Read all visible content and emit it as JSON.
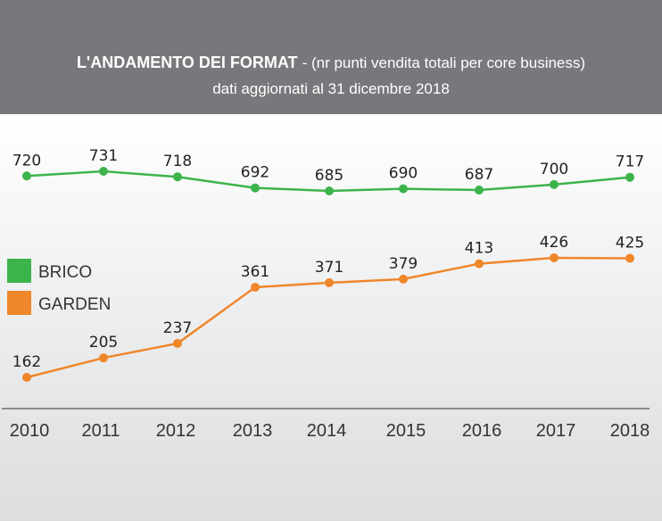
{
  "chart_data": {
    "type": "line",
    "title": "L'ANDAMENTO DEI FORMAT",
    "title_suffix": "- (nr punti vendita totali per core business)",
    "subtitle": "dati aggiornati al 31 dicembre 2018",
    "x": [
      "2010",
      "2011",
      "2012",
      "2013",
      "2014",
      "2015",
      "2016",
      "2017",
      "2018"
    ],
    "series": [
      {
        "name": "BRICO",
        "color": "#3cb44b",
        "values": [
          720,
          731,
          718,
          692,
          685,
          690,
          687,
          700,
          717
        ]
      },
      {
        "name": "GARDEN",
        "color": "#f0862a",
        "values": [
          162,
          205,
          237,
          361,
          371,
          379,
          413,
          426,
          425
        ]
      }
    ],
    "legend": "left",
    "grid": false,
    "xlabel": "",
    "ylabel": ""
  },
  "colors": {
    "header": "#77787b",
    "axis": "#555555",
    "text": "#222222"
  }
}
